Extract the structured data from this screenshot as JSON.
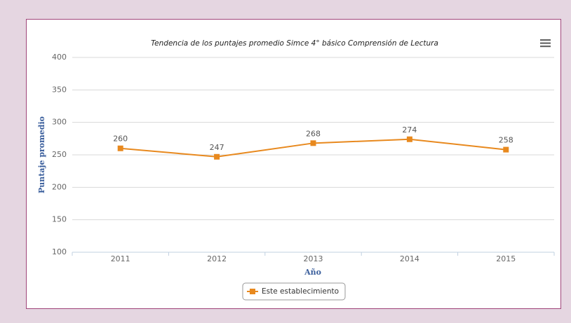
{
  "chart_data": {
    "type": "line",
    "title": "Tendencia de los puntajes promedio Simce 4° básico Comprensión de Lectura",
    "y_label": "Puntaje promedio",
    "x_label": "Año",
    "categories": [
      "2011",
      "2012",
      "2013",
      "2014",
      "2015"
    ],
    "series": [
      {
        "name": "Este establecimiento",
        "color": "#e8891e",
        "values": [
          260,
          247,
          268,
          274,
          258
        ]
      }
    ],
    "ylim": [
      100,
      400
    ],
    "yticks": [
      100,
      150,
      200,
      250,
      300,
      350,
      400
    ],
    "grid": true,
    "legend": "bottom"
  }
}
